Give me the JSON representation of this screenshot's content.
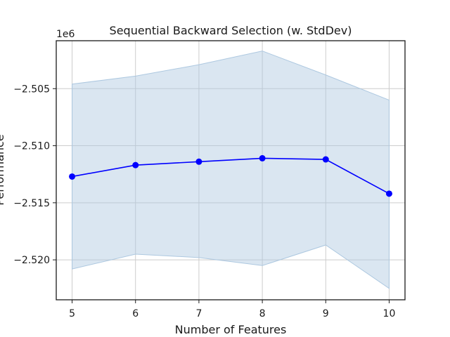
{
  "chart_data": {
    "type": "line",
    "title": "Sequential Backward Selection (w. StdDev)",
    "xlabel": "Number of Features",
    "ylabel": "Performance",
    "offset_label": "1e6",
    "x": [
      5,
      6,
      7,
      8,
      9,
      10
    ],
    "xlim": [
      4.75,
      10.25
    ],
    "ylim": [
      -2523.5,
      -2500.8
    ],
    "y_unit_multiplier": 1000000,
    "yticks": [
      -2505,
      -2510,
      -2515,
      -2520
    ],
    "ytick_labels": [
      "−2.505",
      "−2.510",
      "−2.515",
      "−2.520"
    ],
    "grid": true,
    "series": [
      {
        "values": [
          -2512.7,
          -2511.7,
          -2511.4,
          -2511.1,
          -2511.2,
          -2514.2
        ],
        "upper": [
          -2504.6,
          -2503.9,
          -2502.9,
          -2501.7,
          -2503.8,
          -2506.0
        ],
        "lower": [
          -2520.8,
          -2519.5,
          -2519.8,
          -2520.5,
          -2518.7,
          -2522.5
        ],
        "color": "#0000ff",
        "band_color": "#adc8e0"
      }
    ]
  }
}
